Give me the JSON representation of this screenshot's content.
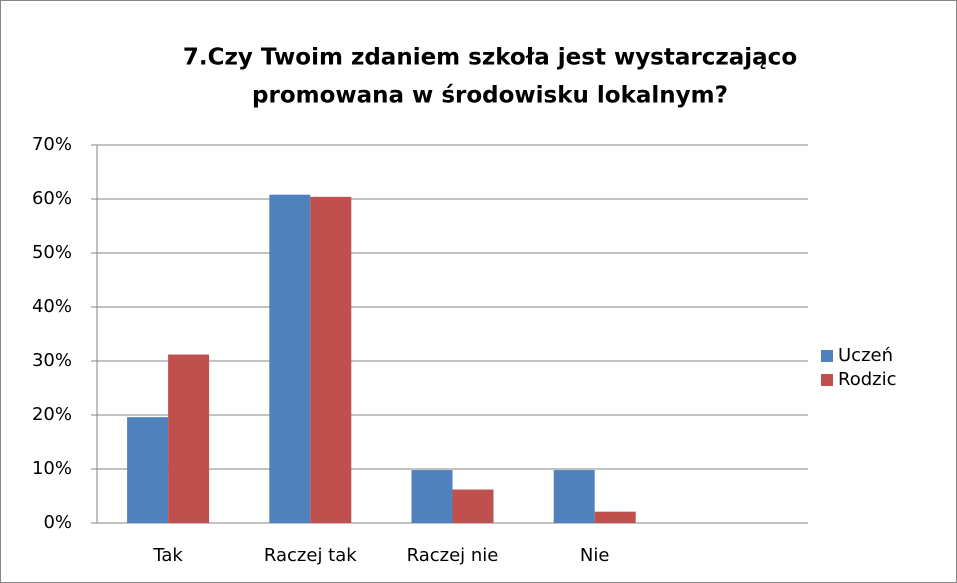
{
  "chart_data": {
    "type": "bar",
    "title": [
      "7.Czy Twoim zdaniem szkoła jest wystarczająco",
      "promowana w środowisku lokalnym?"
    ],
    "categories": [
      "Tak",
      "Raczej tak",
      "Raczej nie",
      "Nie",
      null
    ],
    "series": [
      {
        "name": "Uczeń",
        "color": "#4f81bd",
        "values": [
          19.6,
          60.8,
          9.8,
          9.8,
          null
        ]
      },
      {
        "name": "Rodzic",
        "color": "#c0504d",
        "values": [
          31.2,
          60.4,
          6.2,
          2.1,
          null
        ]
      }
    ],
    "ylim": [
      0,
      70
    ],
    "yticks": [
      {
        "value": 0,
        "label": "0%"
      },
      {
        "value": 10,
        "label": "10%"
      },
      {
        "value": 20,
        "label": "20%"
      },
      {
        "value": 30,
        "label": "30%"
      },
      {
        "value": 40,
        "label": "40%"
      },
      {
        "value": 50,
        "label": "50%"
      },
      {
        "value": 60,
        "label": "60%"
      },
      {
        "value": 70,
        "label": "70%"
      }
    ],
    "grid": true,
    "legend": "right"
  }
}
